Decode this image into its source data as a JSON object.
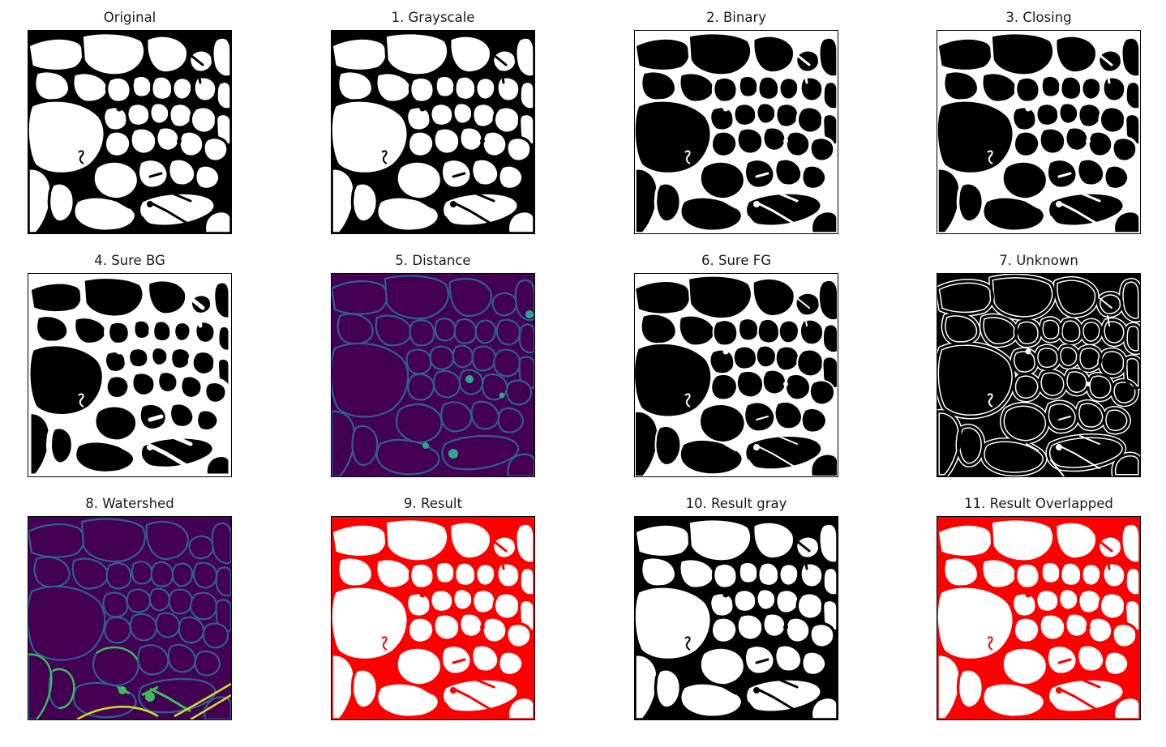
{
  "figure": {
    "panels": [
      {
        "title": "Original",
        "style": "orig"
      },
      {
        "title": "1. Grayscale",
        "style": "orig"
      },
      {
        "title": "2. Binary",
        "style": "inv"
      },
      {
        "title": "3. Closing",
        "style": "inv"
      },
      {
        "title": "4. Sure BG",
        "style": "thick"
      },
      {
        "title": "5. Distance",
        "style": "dist"
      },
      {
        "title": "6. Sure FG",
        "style": "thin"
      },
      {
        "title": "7. Unknown",
        "style": "unknown"
      },
      {
        "title": "8. Watershed",
        "style": "water"
      },
      {
        "title": "9. Result",
        "style": "red"
      },
      {
        "title": "10. Result gray",
        "style": "orig"
      },
      {
        "title": "11. Result Overlapped",
        "style": "red"
      }
    ]
  },
  "colors": {
    "viridis_dark": "#440154",
    "viridis_blue": "#2f5f8f",
    "viridis_teal": "#2fa58a",
    "viridis_green": "#3bbf5c",
    "viridis_yellow": "#c8dc28",
    "red": "#ff0000"
  }
}
